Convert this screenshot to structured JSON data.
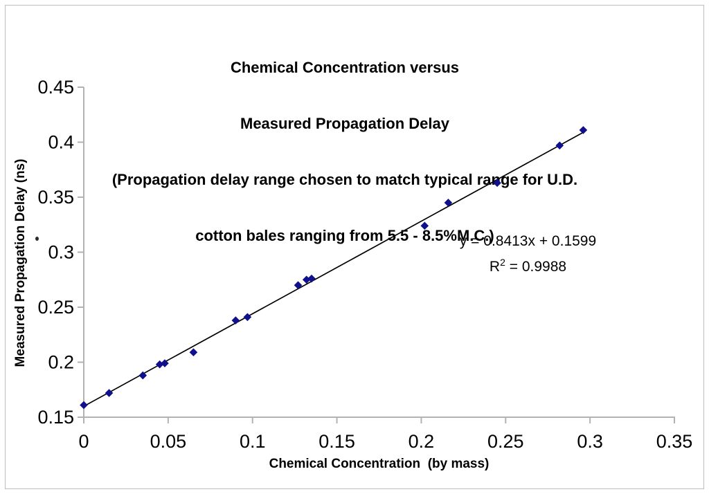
{
  "chart_data": {
    "type": "scatter",
    "title_lines": [
      "Chemical Concentration versus",
      "Measured Propagation Delay",
      "(Propagation delay range chosen to match typical range for U.D.",
      "cotton bales ranging from 5.5 - 8.5%M.C.)"
    ],
    "xlabel": "Chemical Concentration  (by mass)",
    "ylabel": "Measured Propagation Delay (ns)",
    "xlim": [
      0,
      0.35
    ],
    "ylim": [
      0.15,
      0.45
    ],
    "x_tick_values": [
      0,
      0.05,
      0.1,
      0.15,
      0.2,
      0.25,
      0.3,
      0.35
    ],
    "x_tick_labels": [
      "0",
      "0.05",
      "0.1",
      "0.15",
      "0.2",
      "0.25",
      "0.3",
      "0.35"
    ],
    "y_tick_values": [
      0.15,
      0.2,
      0.25,
      0.3,
      0.35,
      0.4,
      0.45
    ],
    "y_tick_labels": [
      "0.15",
      "0.2",
      "0.25",
      "0.3",
      "0.35",
      "0.4",
      "0.45"
    ],
    "grid": false,
    "legend": "none",
    "series": [
      {
        "name": "measured-propagation-delay",
        "marker": "diamond",
        "marker_color": "#10108c",
        "points": [
          {
            "x": 0.0,
            "y": 0.161
          },
          {
            "x": 0.015,
            "y": 0.172
          },
          {
            "x": 0.035,
            "y": 0.188
          },
          {
            "x": 0.045,
            "y": 0.198
          },
          {
            "x": 0.048,
            "y": 0.199
          },
          {
            "x": 0.065,
            "y": 0.209
          },
          {
            "x": 0.09,
            "y": 0.238
          },
          {
            "x": 0.097,
            "y": 0.241
          },
          {
            "x": 0.127,
            "y": 0.27
          },
          {
            "x": 0.132,
            "y": 0.275
          },
          {
            "x": 0.135,
            "y": 0.276
          },
          {
            "x": 0.202,
            "y": 0.324
          },
          {
            "x": 0.216,
            "y": 0.345
          },
          {
            "x": 0.245,
            "y": 0.363
          },
          {
            "x": 0.282,
            "y": 0.397
          },
          {
            "x": 0.296,
            "y": 0.411
          }
        ]
      }
    ],
    "trendline": {
      "slope": 0.8413,
      "intercept": 0.1599,
      "x_start": 0.0,
      "x_end": 0.2955,
      "color": "#000000"
    },
    "annotation": {
      "equation": "y = 0.8413x + 0.1599",
      "r2_base": "R",
      "r2_sup": "2",
      "r2_rest": " = 0.9988"
    },
    "colors": {
      "axis": "#b2b2b2",
      "text": "#000000",
      "frame": "#bdbdbd",
      "background": "#ffffff"
    }
  }
}
